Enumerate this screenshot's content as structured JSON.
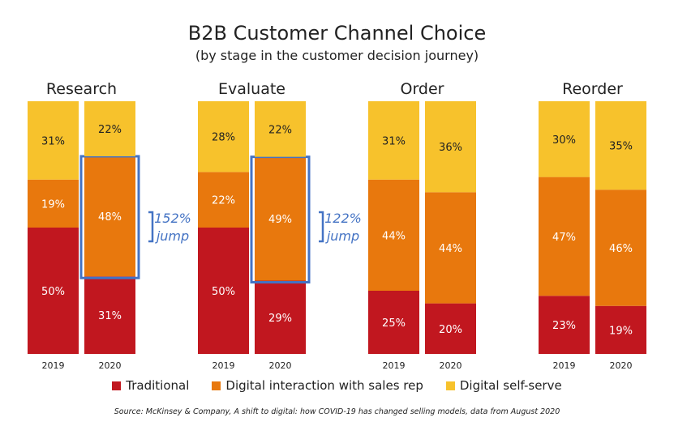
{
  "title": "B2B Customer Channel Choice",
  "subtitle": "(by stage in the customer decision journey)",
  "source": "Source: McKinsey & Company, A shift to digital: how COVID-19 has changed selling models, data from August 2020",
  "colors": {
    "traditional": "#c1171f",
    "digital_interaction": "#e8780d",
    "self_serve": "#f7c22c",
    "highlight": "#4473c4"
  },
  "chart_data": {
    "type": "bar",
    "stacked": true,
    "ylim": [
      0,
      100
    ],
    "grid": false,
    "legend_position": "bottom",
    "series": [
      {
        "name": "Traditional",
        "color": "#c1171f"
      },
      {
        "name": "Digital interaction with sales rep",
        "color": "#e8780d"
      },
      {
        "name": "Digital self-serve",
        "color": "#f7c22c"
      }
    ],
    "groups": [
      {
        "label": "Research",
        "bars": [
          {
            "year": "2019",
            "values": [
              50,
              19,
              31
            ],
            "labels": [
              "50%",
              "19%",
              "31%"
            ]
          },
          {
            "year": "2020",
            "values": [
              31,
              48,
              22
            ],
            "labels": [
              "31%",
              "48%",
              "22%"
            ]
          }
        ],
        "annotation": {
          "line1": "152%",
          "line2": "jump"
        }
      },
      {
        "label": "Evaluate",
        "bars": [
          {
            "year": "2019",
            "values": [
              50,
              22,
              28
            ],
            "labels": [
              "50%",
              "22%",
              "28%"
            ]
          },
          {
            "year": "2020",
            "values": [
              29,
              49,
              22
            ],
            "labels": [
              "29%",
              "49%",
              "22%"
            ]
          }
        ],
        "annotation": {
          "line1": "122%",
          "line2": "jump"
        }
      },
      {
        "label": "Order",
        "bars": [
          {
            "year": "2019",
            "values": [
              25,
              44,
              31
            ],
            "labels": [
              "25%",
              "44%",
              "31%"
            ]
          },
          {
            "year": "2020",
            "values": [
              20,
              44,
              36
            ],
            "labels": [
              "20%",
              "44%",
              "36%"
            ]
          }
        ]
      },
      {
        "label": "Reorder",
        "bars": [
          {
            "year": "2019",
            "values": [
              23,
              47,
              30
            ],
            "labels": [
              "23%",
              "47%",
              "30%"
            ]
          },
          {
            "year": "2020",
            "values": [
              19,
              46,
              35
            ],
            "labels": [
              "19%",
              "46%",
              "35%"
            ]
          }
        ]
      }
    ]
  }
}
